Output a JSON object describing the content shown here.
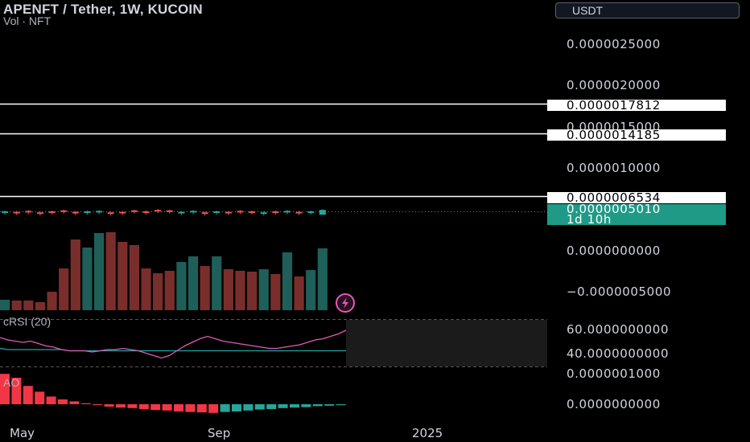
{
  "header": {
    "title": "APENFT / Tether, 1W, KUCOIN",
    "subtitle": "Vol · NFT",
    "currency": "USDT"
  },
  "price_axis": {
    "labels": [
      "0.0000025000",
      "0.0000020000",
      "0.0000015000",
      "0.0000010000",
      "0.0000000000",
      "−0.0000005000"
    ]
  },
  "price_tags": {
    "level_1": "0.0000017812",
    "level_2": "0.0000014185",
    "level_3": "0.0000006534",
    "current_price": "0.0000005010",
    "countdown": "1d 10h"
  },
  "crsi_pane": {
    "label": "cRSI (20)",
    "axis_labels": [
      "60.0000000000",
      "40.0000000000"
    ]
  },
  "ao_pane": {
    "label": "AO",
    "axis_labels": [
      "0.0000001000",
      "0.0000000000"
    ]
  },
  "time_axis": {
    "labels": [
      "May",
      "Sep",
      "2025"
    ]
  },
  "colors": {
    "up": "#26a69a",
    "down": "#ef5350",
    "vol_up": "#1e5f59",
    "vol_down": "#7a2e2b",
    "crsi_line": "#e05ab8",
    "crsi_band": "#1fa7a0",
    "ao_up": "#26a69a",
    "ao_down": "#f23645"
  },
  "chart_data": {
    "type": "candlestick",
    "horizontal_levels": [
      1.7812e-06,
      1.4185e-06,
      6.534e-07
    ],
    "last_price": 5.01e-07,
    "volume": [
      {
        "v": 13,
        "up": true
      },
      {
        "v": 12,
        "up": false
      },
      {
        "v": 12,
        "up": false
      },
      {
        "v": 10,
        "up": false
      },
      {
        "v": 23,
        "up": false
      },
      {
        "v": 52,
        "up": false
      },
      {
        "v": 88,
        "up": false
      },
      {
        "v": 78,
        "up": true
      },
      {
        "v": 96,
        "up": true
      },
      {
        "v": 97,
        "up": false
      },
      {
        "v": 85,
        "up": false
      },
      {
        "v": 81,
        "up": false
      },
      {
        "v": 52,
        "up": false
      },
      {
        "v": 46,
        "up": false
      },
      {
        "v": 49,
        "up": false
      },
      {
        "v": 60,
        "up": true
      },
      {
        "v": 67,
        "up": true
      },
      {
        "v": 55,
        "up": false
      },
      {
        "v": 67,
        "up": true
      },
      {
        "v": 51,
        "up": false
      },
      {
        "v": 49,
        "up": false
      },
      {
        "v": 48,
        "up": false
      },
      {
        "v": 51,
        "up": true
      },
      {
        "v": 45,
        "up": false
      },
      {
        "v": 72,
        "up": true
      },
      {
        "v": 42,
        "up": false
      },
      {
        "v": 50,
        "up": true
      },
      {
        "v": 77,
        "up": true
      }
    ],
    "crsi": [
      52,
      50,
      49,
      48,
      49,
      47,
      45,
      44,
      42,
      41,
      41,
      41,
      40,
      41,
      42,
      42,
      43,
      42,
      41,
      39,
      37,
      35,
      37,
      41,
      45,
      48,
      51,
      53,
      51,
      49,
      48,
      47,
      46,
      45,
      44,
      43,
      43,
      44,
      45,
      46,
      48,
      50,
      51,
      53,
      55,
      58
    ],
    "crsi_band": [
      43,
      42,
      42,
      42,
      42,
      42,
      42,
      42,
      42,
      41,
      41,
      41,
      41,
      41,
      41,
      41,
      41,
      41,
      41,
      41,
      41,
      41,
      41,
      41,
      41,
      41,
      41,
      41,
      41,
      41,
      41,
      41,
      41,
      41,
      41,
      41,
      41,
      41,
      41,
      41,
      41,
      41,
      41,
      41,
      41,
      41
    ],
    "ao": [
      6.3,
      5.5,
      3.8,
      2.6,
      1.6,
      1.0,
      0.6,
      0.2,
      -0.2,
      -0.5,
      -0.7,
      -0.8,
      -1.0,
      -1.2,
      -1.3,
      -1.5,
      -1.6,
      -1.7,
      -1.8,
      -1.6,
      -1.5,
      -1.3,
      -1.1,
      -1.0,
      -0.8,
      -0.7,
      -0.6,
      -0.4,
      -0.3,
      -0.2
    ]
  }
}
